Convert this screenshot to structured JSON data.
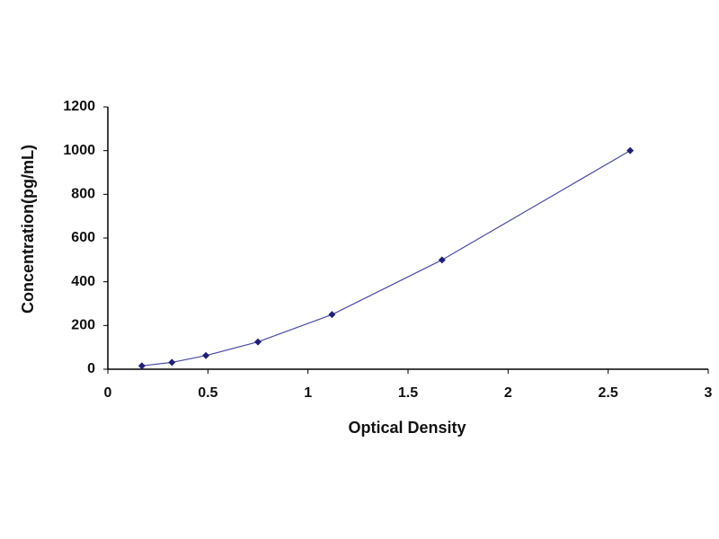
{
  "chart_data": {
    "type": "scatter",
    "x_label": "Optical Density",
    "y_label": "Concentration(pg/mL)",
    "x": [
      0.17,
      0.32,
      0.49,
      0.75,
      1.12,
      1.67,
      2.61
    ],
    "series": [
      {
        "color": "#1f1f7a",
        "values": [
          15.6,
          31.2,
          62.5,
          125,
          250,
          500,
          1000
        ]
      }
    ],
    "line_color": "#4b4ba6",
    "xlim": [
      0,
      3
    ],
    "xticks": [
      0,
      0.5,
      1,
      1.5,
      2,
      2.5,
      3
    ],
    "ylim": [
      0,
      1200
    ],
    "yticks": [
      0,
      200,
      400,
      600,
      800,
      1000,
      1200
    ],
    "grid": false
  }
}
